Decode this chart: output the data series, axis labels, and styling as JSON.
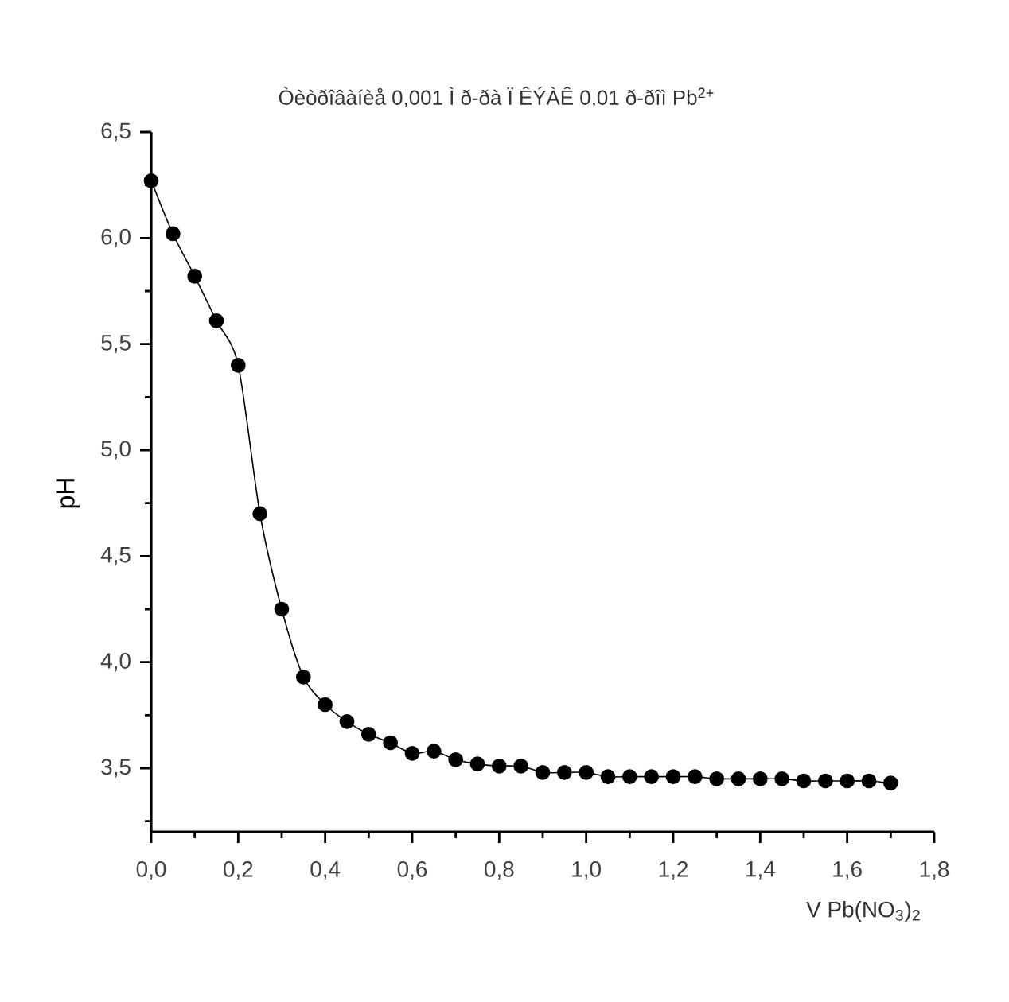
{
  "chart_data": {
    "type": "line",
    "title": "Òèòðîâàíèå 0,001 Ì ð-ðà Ï ÊÝÀÊ 0,01 ð-ðîì Pb$^{2+}$",
    "xlabel": "V Pb(NO$_{3}$)$_{2}$",
    "ylabel": "pH",
    "x": [
      0,
      0.05,
      0.1,
      0.15,
      0.2,
      0.25,
      0.3,
      0.35,
      0.4,
      0.45,
      0.5,
      0.55,
      0.6,
      0.65,
      0.7,
      0.75,
      0.8,
      0.85,
      0.9,
      0.95,
      1.0,
      1.05,
      1.1,
      1.15,
      1.2,
      1.25,
      1.3,
      1.35,
      1.4,
      1.45,
      1.5,
      1.55,
      1.6,
      1.65,
      1.7
    ],
    "values": [
      6.27,
      6.02,
      5.82,
      5.61,
      5.4,
      4.7,
      4.25,
      3.93,
      3.8,
      3.72,
      3.66,
      3.62,
      3.57,
      3.58,
      3.54,
      3.52,
      3.51,
      3.51,
      3.48,
      3.48,
      3.48,
      3.46,
      3.46,
      3.46,
      3.46,
      3.46,
      3.45,
      3.45,
      3.45,
      3.45,
      3.44,
      3.44,
      3.44,
      3.44,
      3.43
    ],
    "color": "#000000",
    "marker": "circle",
    "line_style": "solid",
    "xlim": [
      0,
      1.8
    ],
    "ylim": [
      3.2,
      6.5
    ],
    "xticks": [
      {
        "value": 0,
        "label": "0,0"
      },
      {
        "value": 0.1,
        "label": null
      },
      {
        "value": 0.2,
        "label": "0,2"
      },
      {
        "value": 0.3,
        "label": null
      },
      {
        "value": 0.4,
        "label": "0,4"
      },
      {
        "value": 0.5,
        "label": null
      },
      {
        "value": 0.6,
        "label": "0,6"
      },
      {
        "value": 0.7,
        "label": null
      },
      {
        "value": 0.8,
        "label": "0,8"
      },
      {
        "value": 0.9,
        "label": null
      },
      {
        "value": 1.0,
        "label": "1,0"
      },
      {
        "value": 1.1,
        "label": null
      },
      {
        "value": 1.2,
        "label": "1,2"
      },
      {
        "value": 1.3,
        "label": null
      },
      {
        "value": 1.4,
        "label": "1,4"
      },
      {
        "value": 1.5,
        "label": null
      },
      {
        "value": 1.6,
        "label": "1,6"
      },
      {
        "value": 1.7,
        "label": null
      },
      {
        "value": 1.8,
        "label": "1,8"
      }
    ],
    "yticks": [
      {
        "value": 3.25,
        "label": null
      },
      {
        "value": 3.5,
        "label": "3,5"
      },
      {
        "value": 3.75,
        "label": null
      },
      {
        "value": 4.0,
        "label": "4,0"
      },
      {
        "value": 4.25,
        "label": null
      },
      {
        "value": 4.5,
        "label": "4,5"
      },
      {
        "value": 4.75,
        "label": null
      },
      {
        "value": 5.0,
        "label": "5,0"
      },
      {
        "value": 5.25,
        "label": null
      },
      {
        "value": 5.5,
        "label": "5,5"
      },
      {
        "value": 5.75,
        "label": null
      },
      {
        "value": 6.0,
        "label": "6,0"
      },
      {
        "value": 6.25,
        "label": null
      },
      {
        "value": 6.5,
        "label": "6,5"
      }
    ]
  }
}
